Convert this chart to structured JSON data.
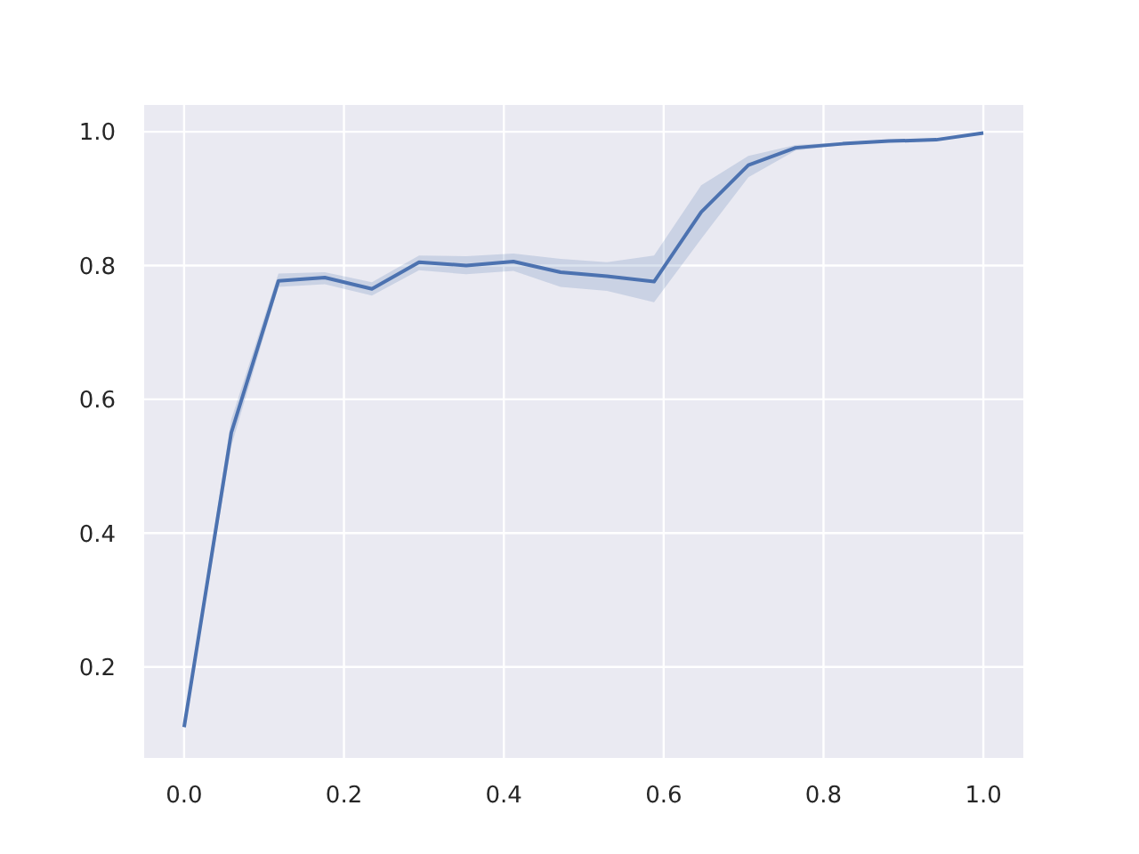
{
  "chart_data": {
    "type": "line",
    "x": [
      0,
      0.059,
      0.118,
      0.176,
      0.235,
      0.294,
      0.353,
      0.412,
      0.471,
      0.529,
      0.588,
      0.647,
      0.706,
      0.765,
      0.824,
      0.882,
      0.941,
      1
    ],
    "series": [
      {
        "color": "#4c72b0",
        "values": [
          0.11,
          0.55,
          0.777,
          0.782,
          0.765,
          0.805,
          0.8,
          0.806,
          0.79,
          0.784,
          0.776,
          0.88,
          0.95,
          0.976,
          0.982,
          0.986,
          0.988,
          0.998
        ],
        "lower": [
          0.105,
          0.53,
          0.768,
          0.772,
          0.755,
          0.793,
          0.787,
          0.792,
          0.768,
          0.762,
          0.745,
          0.84,
          0.932,
          0.972,
          0.98,
          0.985,
          0.987,
          0.998
        ],
        "upper": [
          0.115,
          0.57,
          0.788,
          0.79,
          0.775,
          0.815,
          0.814,
          0.818,
          0.81,
          0.805,
          0.815,
          0.92,
          0.964,
          0.98,
          0.984,
          0.988,
          0.99,
          0.998
        ]
      }
    ],
    "xlim": [
      -0.05,
      1.05
    ],
    "xticks": [
      {
        "value": 0,
        "label": "0.0"
      },
      0.2,
      0.4,
      0.6,
      0.8,
      {
        "value": 1,
        "label": "1.0"
      }
    ],
    "ylim": [
      0.064,
      1.04
    ],
    "yticks": [
      0.2,
      0.4,
      0.6,
      0.8,
      {
        "value": 1,
        "label": "1.0"
      }
    ],
    "grid": true,
    "legend": false,
    "marker": "none",
    "line_style": "solid"
  }
}
